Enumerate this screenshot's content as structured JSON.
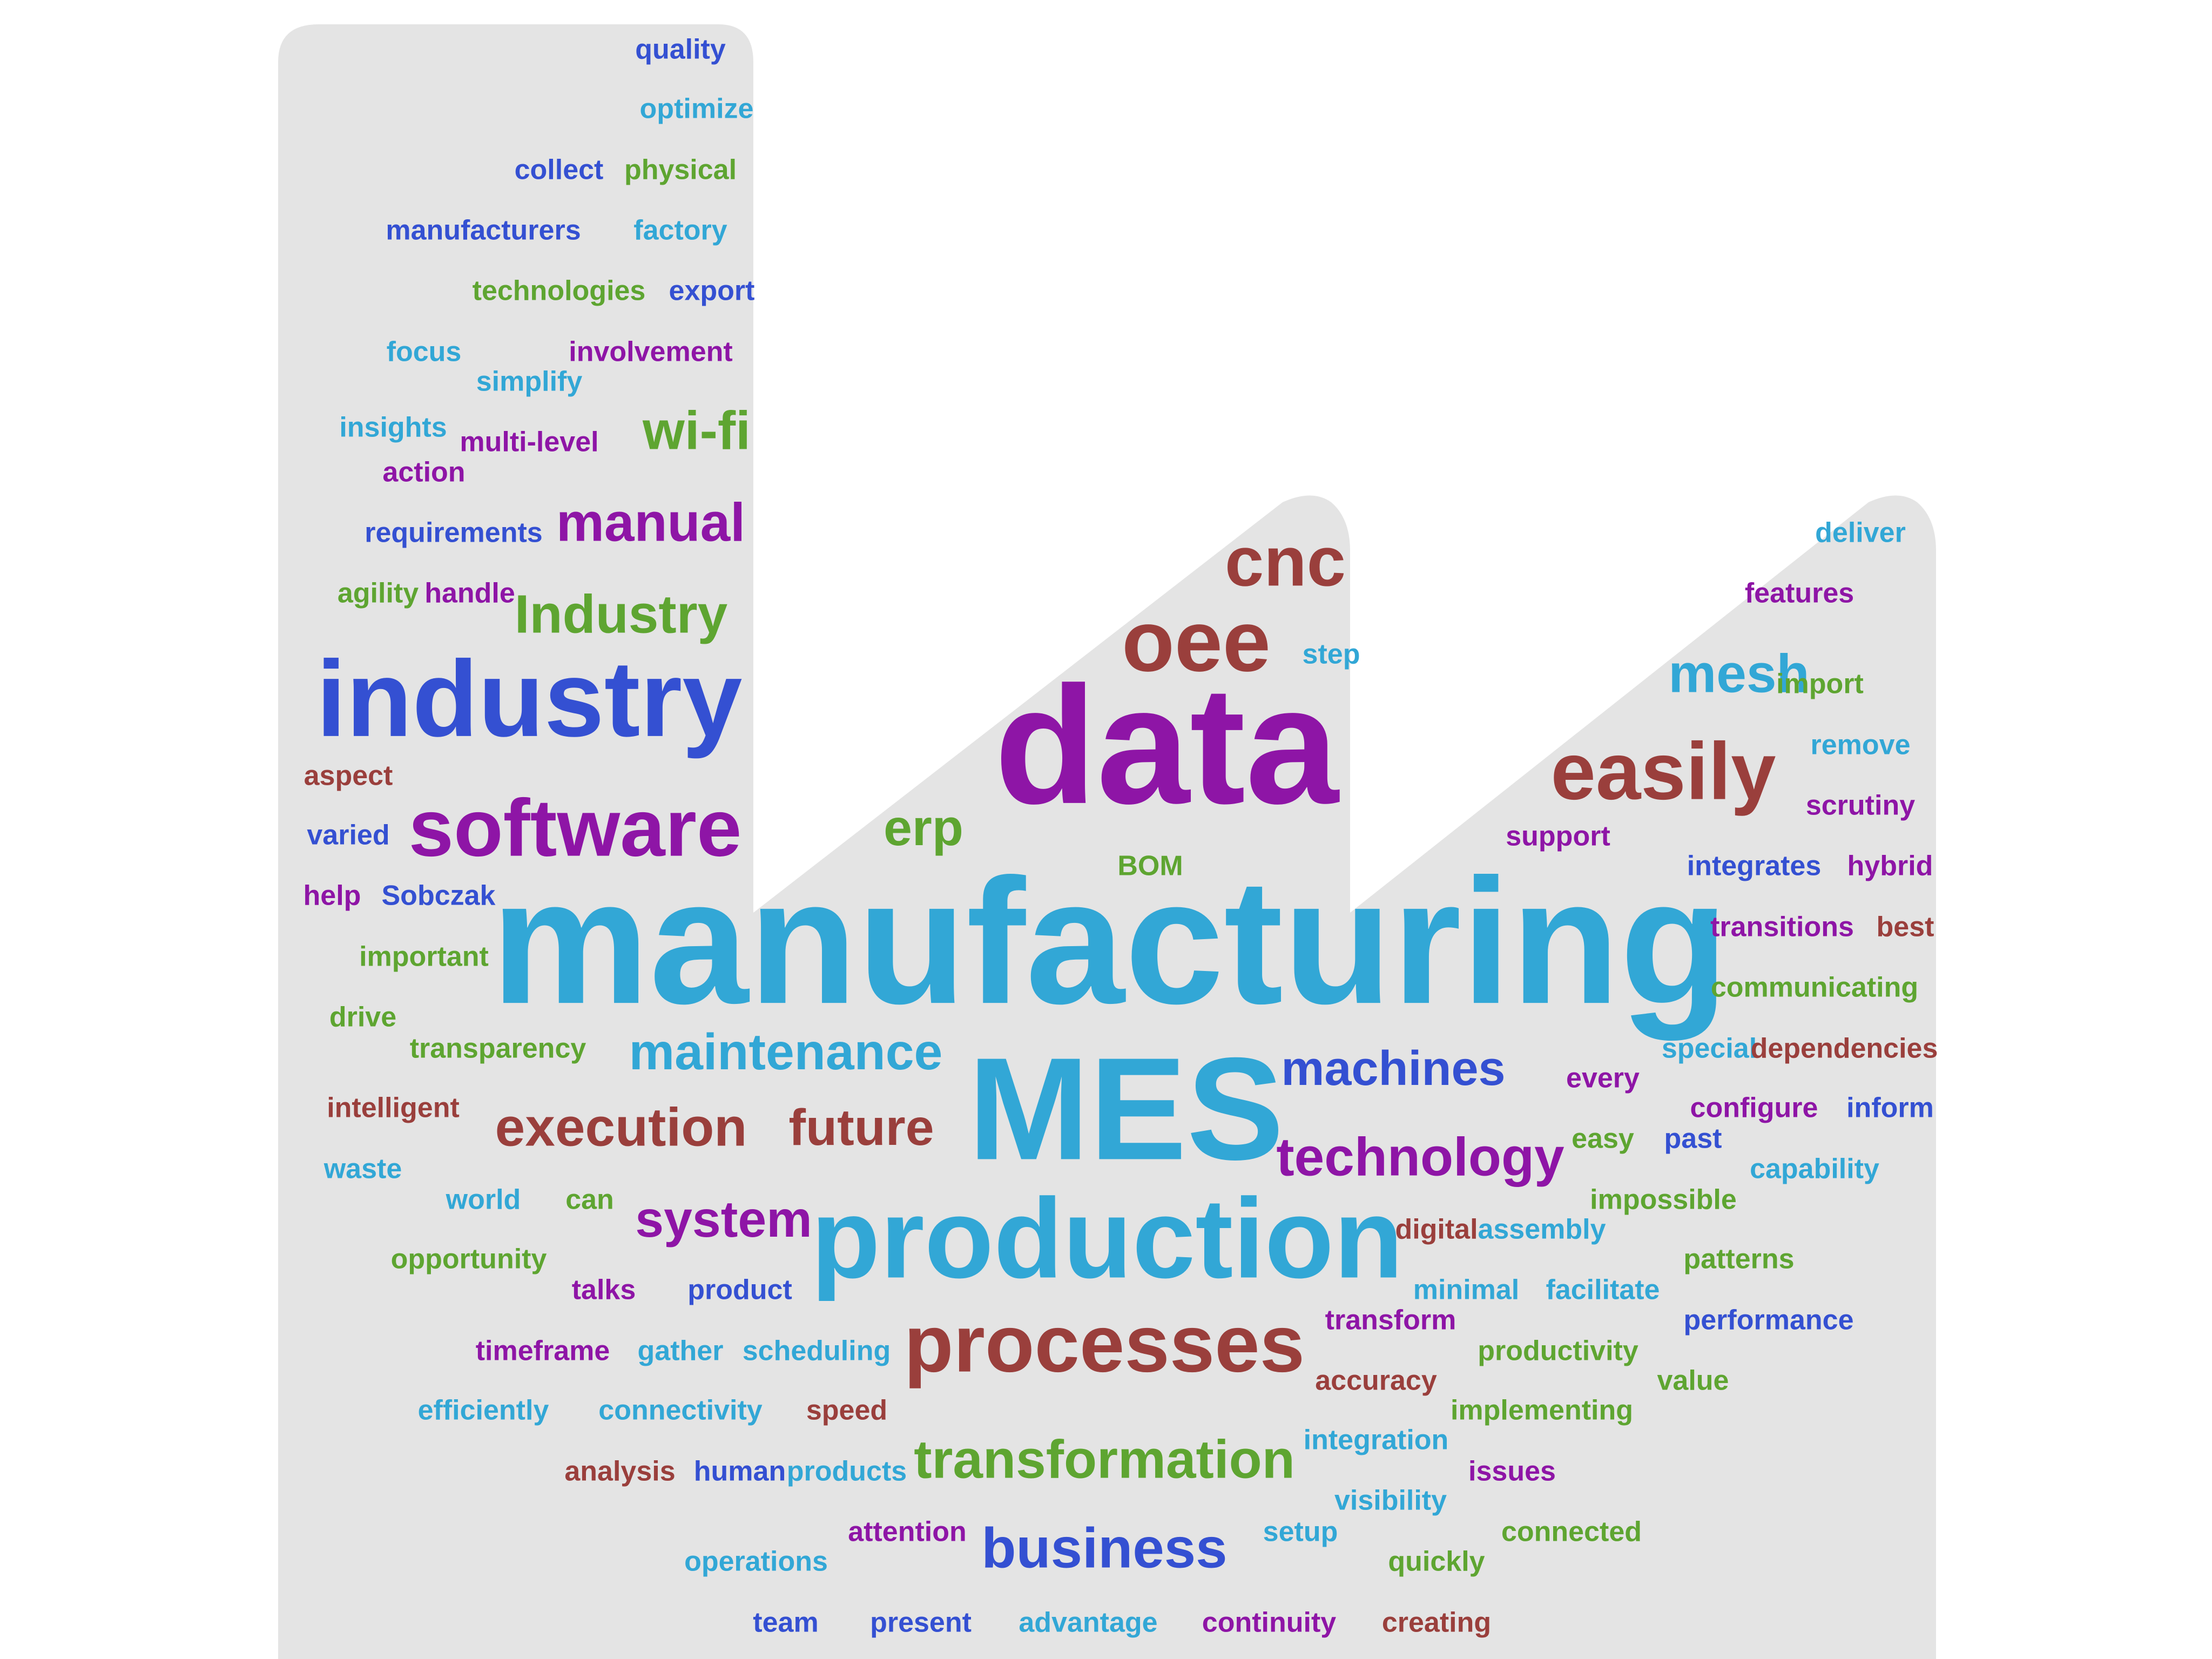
{
  "palette": {
    "blue": "#3450d2",
    "cyan": "#32a7d6",
    "green": "#5ea531",
    "purple": "#8e15a6",
    "brown": "#9a3f3c",
    "shape": "#e4e4e4"
  },
  "words": [
    {
      "text": "manufacturing",
      "color": "cyan"
    },
    {
      "text": "data",
      "color": "purple"
    },
    {
      "text": "MES",
      "color": "cyan"
    },
    {
      "text": "production",
      "color": "cyan"
    },
    {
      "text": "industry",
      "color": "blue"
    },
    {
      "text": "processes",
      "color": "brown"
    },
    {
      "text": "oee",
      "color": "brown"
    },
    {
      "text": "software",
      "color": "purple"
    },
    {
      "text": "easily",
      "color": "brown"
    },
    {
      "text": "cnc",
      "color": "brown"
    },
    {
      "text": "transformation",
      "color": "green"
    },
    {
      "text": "business",
      "color": "blue"
    },
    {
      "text": "technology",
      "color": "purple"
    },
    {
      "text": "execution",
      "color": "brown"
    },
    {
      "text": "maintenance",
      "color": "cyan"
    },
    {
      "text": "machines",
      "color": "blue"
    },
    {
      "text": "future",
      "color": "brown"
    },
    {
      "text": "system",
      "color": "purple"
    },
    {
      "text": "mesh",
      "color": "cyan"
    },
    {
      "text": "manual",
      "color": "purple"
    },
    {
      "text": "Industry",
      "color": "green"
    },
    {
      "text": "wi-fi",
      "color": "green"
    },
    {
      "text": "erp",
      "color": "green"
    },
    {
      "text": "quality",
      "color": "blue"
    },
    {
      "text": "optimize",
      "color": "cyan"
    },
    {
      "text": "collect",
      "color": "blue"
    },
    {
      "text": "physical",
      "color": "green"
    },
    {
      "text": "manufacturers",
      "color": "blue"
    },
    {
      "text": "factory",
      "color": "cyan"
    },
    {
      "text": "technologies",
      "color": "green"
    },
    {
      "text": "export",
      "color": "blue"
    },
    {
      "text": "focus",
      "color": "cyan"
    },
    {
      "text": "involvement",
      "color": "purple"
    },
    {
      "text": "simplify",
      "color": "cyan"
    },
    {
      "text": "insights",
      "color": "cyan"
    },
    {
      "text": "multi-level",
      "color": "purple"
    },
    {
      "text": "action",
      "color": "purple"
    },
    {
      "text": "requirements",
      "color": "blue"
    },
    {
      "text": "agility",
      "color": "green"
    },
    {
      "text": "handle",
      "color": "purple"
    },
    {
      "text": "aspect",
      "color": "brown"
    },
    {
      "text": "varied",
      "color": "blue"
    },
    {
      "text": "help",
      "color": "purple"
    },
    {
      "text": "Sobczak",
      "color": "blue"
    },
    {
      "text": "important",
      "color": "green"
    },
    {
      "text": "drive",
      "color": "green"
    },
    {
      "text": "transparency",
      "color": "green"
    },
    {
      "text": "intelligent",
      "color": "brown"
    },
    {
      "text": "waste",
      "color": "cyan"
    },
    {
      "text": "world",
      "color": "cyan"
    },
    {
      "text": "can",
      "color": "green"
    },
    {
      "text": "opportunity",
      "color": "green"
    },
    {
      "text": "talks",
      "color": "purple"
    },
    {
      "text": "product",
      "color": "blue"
    },
    {
      "text": "timeframe",
      "color": "purple"
    },
    {
      "text": "gather",
      "color": "cyan"
    },
    {
      "text": "scheduling",
      "color": "cyan"
    },
    {
      "text": "efficiently",
      "color": "cyan"
    },
    {
      "text": "connectivity",
      "color": "cyan"
    },
    {
      "text": "speed",
      "color": "brown"
    },
    {
      "text": "analysis",
      "color": "brown"
    },
    {
      "text": "human",
      "color": "blue"
    },
    {
      "text": "products",
      "color": "cyan"
    },
    {
      "text": "attention",
      "color": "purple"
    },
    {
      "text": "operations",
      "color": "cyan"
    },
    {
      "text": "team",
      "color": "blue"
    },
    {
      "text": "present",
      "color": "blue"
    },
    {
      "text": "advantage",
      "color": "cyan"
    },
    {
      "text": "continuity",
      "color": "purple"
    },
    {
      "text": "creating",
      "color": "brown"
    },
    {
      "text": "setup",
      "color": "cyan"
    },
    {
      "text": "quickly",
      "color": "green"
    },
    {
      "text": "connected",
      "color": "green"
    },
    {
      "text": "visibility",
      "color": "cyan"
    },
    {
      "text": "integration",
      "color": "cyan"
    },
    {
      "text": "issues",
      "color": "purple"
    },
    {
      "text": "implementing",
      "color": "green"
    },
    {
      "text": "accuracy",
      "color": "brown"
    },
    {
      "text": "value",
      "color": "green"
    },
    {
      "text": "productivity",
      "color": "green"
    },
    {
      "text": "transform",
      "color": "purple"
    },
    {
      "text": "performance",
      "color": "blue"
    },
    {
      "text": "minimal",
      "color": "cyan"
    },
    {
      "text": "facilitate",
      "color": "cyan"
    },
    {
      "text": "patterns",
      "color": "green"
    },
    {
      "text": "digital",
      "color": "brown"
    },
    {
      "text": "assembly",
      "color": "cyan"
    },
    {
      "text": "impossible",
      "color": "green"
    },
    {
      "text": "capability",
      "color": "cyan"
    },
    {
      "text": "easy",
      "color": "green"
    },
    {
      "text": "past",
      "color": "blue"
    },
    {
      "text": "configure",
      "color": "purple"
    },
    {
      "text": "inform",
      "color": "blue"
    },
    {
      "text": "every",
      "color": "purple"
    },
    {
      "text": "special",
      "color": "cyan"
    },
    {
      "text": "dependencies",
      "color": "brown"
    },
    {
      "text": "communicating",
      "color": "green"
    },
    {
      "text": "transitions",
      "color": "purple"
    },
    {
      "text": "best",
      "color": "brown"
    },
    {
      "text": "integrates",
      "color": "blue"
    },
    {
      "text": "hybrid",
      "color": "purple"
    },
    {
      "text": "support",
      "color": "purple"
    },
    {
      "text": "scrutiny",
      "color": "purple"
    },
    {
      "text": "remove",
      "color": "cyan"
    },
    {
      "text": "import",
      "color": "green"
    },
    {
      "text": "features",
      "color": "purple"
    },
    {
      "text": "deliver",
      "color": "cyan"
    },
    {
      "text": "step",
      "color": "cyan"
    },
    {
      "text": "BOM",
      "color": "green"
    }
  ]
}
